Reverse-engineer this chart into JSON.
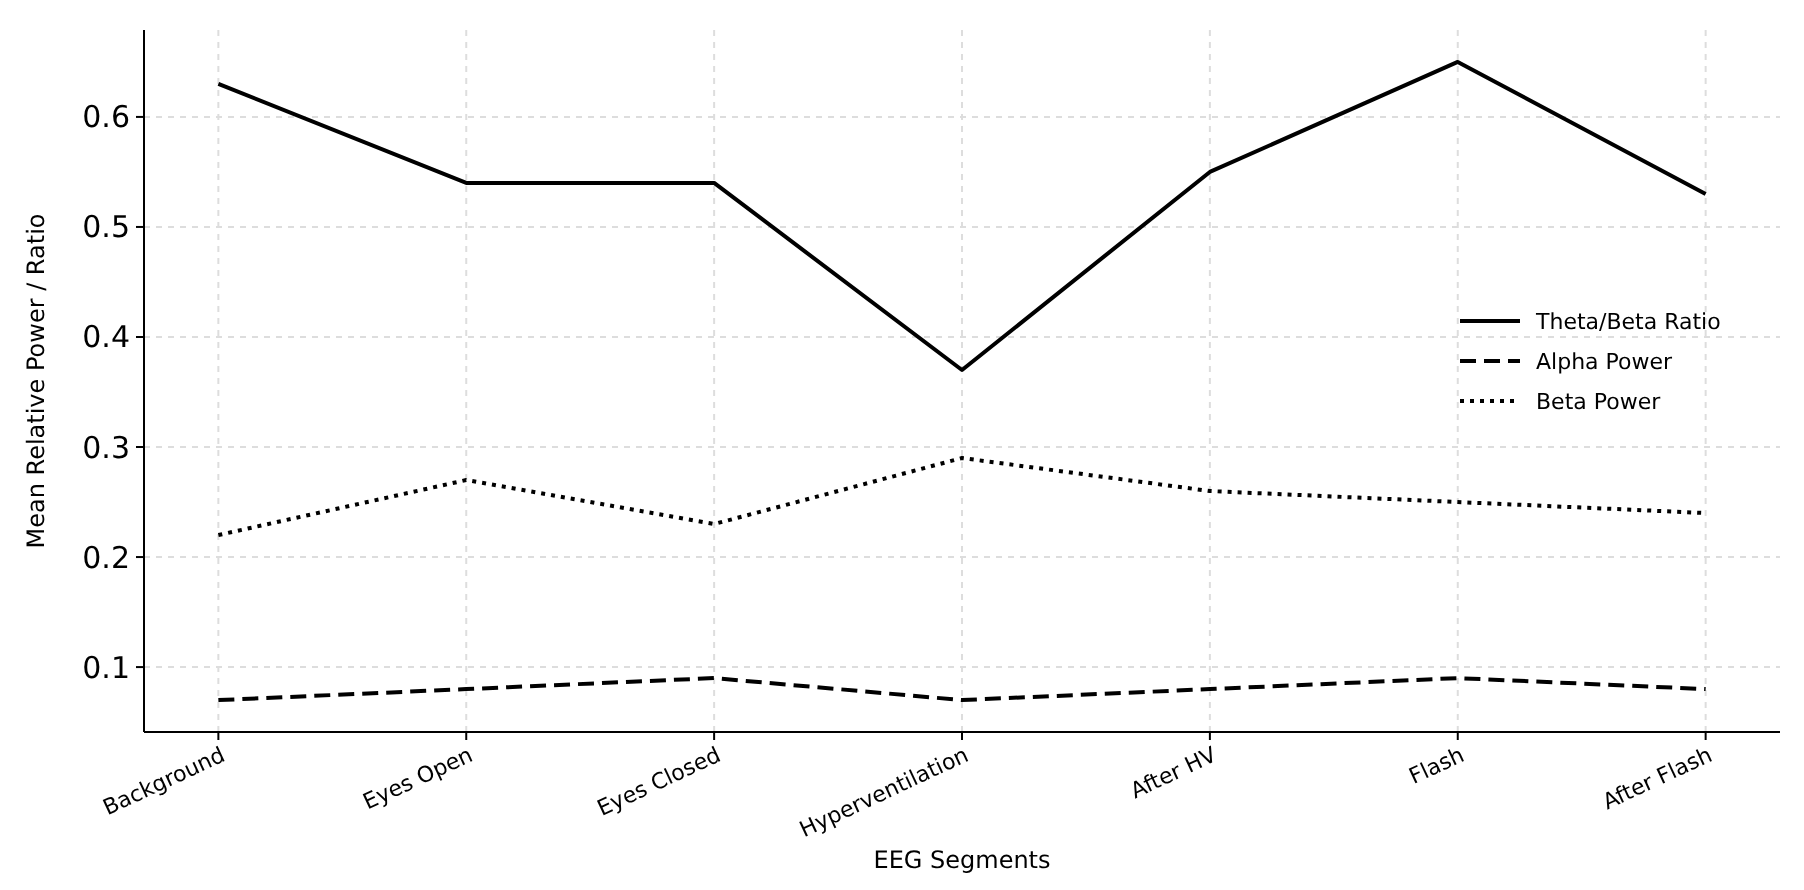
{
  "chart_data": {
    "type": "line",
    "xlabel": "EEG Segments",
    "ylabel": "Mean Relative Power / Ratio",
    "categories": [
      "Background",
      "Eyes Open",
      "Eyes Closed",
      "Hyperventilation",
      "After HV",
      "Flash",
      "After Flash"
    ],
    "series": [
      {
        "name": "Theta/Beta Ratio",
        "color": "#000000",
        "line_style": "solid",
        "values": [
          0.63,
          0.54,
          0.54,
          0.37,
          0.55,
          0.65,
          0.53
        ]
      },
      {
        "name": "Alpha Power",
        "color": "#000000",
        "line_style": "dashed",
        "values": [
          0.07,
          0.08,
          0.09,
          0.07,
          0.08,
          0.09,
          0.08
        ]
      },
      {
        "name": "Beta Power",
        "color": "#000000",
        "line_style": "dotted",
        "values": [
          0.22,
          0.27,
          0.23,
          0.29,
          0.26,
          0.25,
          0.24
        ]
      }
    ],
    "ylim": [
      0.041,
      0.679
    ],
    "yticks": [
      0.1,
      0.2,
      0.3,
      0.4,
      0.5,
      0.6
    ],
    "grid": true,
    "legend": "right",
    "marker": "none"
  }
}
